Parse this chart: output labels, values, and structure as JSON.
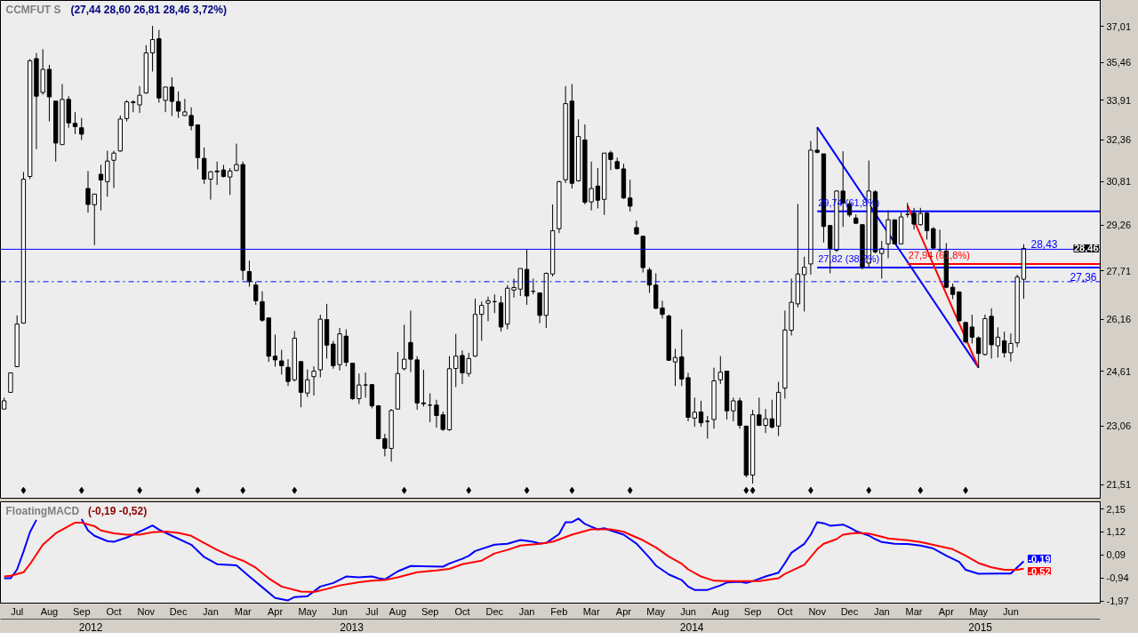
{
  "chart_data": [
    {
      "type": "candlestick",
      "title": "CCMFUT S",
      "subtitle": "(27,44  28,60  26,81  28,46  3,72%)",
      "x": [
        "2012-06-18",
        "2012-06-25",
        "2012-07-02",
        "2012-07-09",
        "2012-07-16",
        "2012-07-23",
        "2012-07-30",
        "2012-08-06",
        "2012-08-13",
        "2012-08-20",
        "2012-08-27",
        "2012-09-03",
        "2012-09-10",
        "2012-09-17",
        "2012-09-24",
        "2012-10-01",
        "2012-10-08",
        "2012-10-15",
        "2012-10-22",
        "2012-10-29",
        "2012-11-05",
        "2012-11-12",
        "2012-11-19",
        "2012-11-26",
        "2012-12-03",
        "2012-12-10",
        "2012-12-17",
        "2012-12-24",
        "2012-12-31",
        "2013-01-07",
        "2013-01-14",
        "2013-01-21",
        "2013-01-28",
        "2013-02-04",
        "2013-02-11",
        "2013-02-18",
        "2013-02-25",
        "2013-03-04",
        "2013-03-11",
        "2013-03-18",
        "2013-03-25",
        "2013-04-01",
        "2013-04-08",
        "2013-04-15",
        "2013-04-22",
        "2013-04-29",
        "2013-05-06",
        "2013-05-13",
        "2013-05-20",
        "2013-05-27",
        "2013-06-03",
        "2013-06-10",
        "2013-06-17",
        "2013-06-24",
        "2013-07-01",
        "2013-07-08",
        "2013-07-15",
        "2013-07-22",
        "2013-07-29",
        "2013-08-05",
        "2013-08-12",
        "2013-08-19",
        "2013-08-26",
        "2013-09-02",
        "2013-09-09",
        "2013-09-16",
        "2013-09-23",
        "2013-09-30",
        "2013-10-07",
        "2013-10-14",
        "2013-10-21",
        "2013-10-28",
        "2013-11-04",
        "2013-11-11",
        "2013-11-18",
        "2013-11-25",
        "2013-12-02",
        "2013-12-09",
        "2013-12-16",
        "2013-12-23",
        "2013-12-30",
        "2014-01-06",
        "2014-01-13",
        "2014-01-20",
        "2014-01-27",
        "2014-02-03",
        "2014-02-10",
        "2014-02-17",
        "2014-02-24",
        "2014-03-03",
        "2014-03-10",
        "2014-03-17",
        "2014-03-24",
        "2014-03-31",
        "2014-04-07",
        "2014-04-14",
        "2014-04-21",
        "2014-04-28",
        "2014-05-05",
        "2014-05-12",
        "2014-05-19",
        "2014-05-26",
        "2014-06-02",
        "2014-06-09",
        "2014-06-16",
        "2014-06-23",
        "2014-06-30",
        "2014-07-07",
        "2014-07-14",
        "2014-07-21",
        "2014-07-28",
        "2014-08-04",
        "2014-08-11",
        "2014-08-18",
        "2014-08-25",
        "2014-09-01",
        "2014-09-08",
        "2014-09-15",
        "2014-09-22",
        "2014-09-29",
        "2014-10-06",
        "2014-10-13",
        "2014-10-20",
        "2014-10-27",
        "2014-11-03",
        "2014-11-10",
        "2014-11-17",
        "2014-11-24",
        "2014-12-01",
        "2014-12-08",
        "2014-12-15",
        "2014-12-22",
        "2014-12-29",
        "2015-01-05",
        "2015-01-12",
        "2015-01-19",
        "2015-01-26",
        "2015-02-02",
        "2015-02-09",
        "2015-02-16",
        "2015-02-23",
        "2015-03-02",
        "2015-03-09",
        "2015-03-16",
        "2015-03-23",
        "2015-03-30",
        "2015-04-06",
        "2015-04-13",
        "2015-04-20",
        "2015-04-27",
        "2015-05-04",
        "2015-05-11",
        "2015-05-18",
        "2015-05-25",
        "2015-06-01",
        "2015-06-08",
        "2015-06-15",
        "2015-06-22",
        "2015-06-29"
      ],
      "ohlc": [
        [
          23.53,
          23.85,
          23.53,
          23.76
        ],
        [
          24.0,
          24.56,
          24.0,
          24.56
        ],
        [
          24.74,
          26.29,
          24.74,
          26.02
        ],
        [
          26.05,
          31.15,
          26.05,
          30.89
        ],
        [
          30.99,
          35.61,
          30.89,
          35.54
        ],
        [
          35.63,
          35.87,
          32.01,
          34.08
        ],
        [
          34.23,
          36.03,
          34.14,
          35.18
        ],
        [
          35.18,
          35.37,
          33.08,
          34.05
        ],
        [
          33.88,
          33.88,
          31.54,
          32.24
        ],
        [
          32.18,
          34.57,
          32.18,
          33.95
        ],
        [
          33.95,
          34.08,
          32.83,
          33.02
        ],
        [
          33.0,
          33.44,
          32.58,
          32.87
        ],
        [
          32.83,
          33.21,
          32.36,
          32.58
        ],
        [
          30.55,
          31.19,
          29.69,
          29.98
        ],
        [
          29.97,
          30.35,
          28.57,
          30.35
        ],
        [
          31.07,
          31.42,
          29.77,
          30.86
        ],
        [
          30.8,
          31.95,
          30.26,
          31.56
        ],
        [
          31.59,
          31.95,
          30.57,
          31.86
        ],
        [
          31.94,
          33.31,
          31.91,
          33.17
        ],
        [
          33.19,
          33.92,
          33.08,
          33.85
        ],
        [
          33.82,
          33.92,
          33.44,
          33.85
        ],
        [
          33.73,
          34.49,
          33.41,
          34.12
        ],
        [
          34.21,
          36.2,
          34.18,
          35.87
        ],
        [
          35.87,
          37.04,
          35.09,
          36.44
        ],
        [
          36.48,
          36.86,
          33.82,
          34.01
        ],
        [
          33.91,
          34.45,
          33.44,
          34.45
        ],
        [
          34.45,
          34.85,
          33.29,
          33.87
        ],
        [
          33.86,
          34.27,
          33.21,
          33.48
        ],
        [
          33.31,
          33.97,
          33.29,
          33.45
        ],
        [
          33.31,
          33.63,
          32.73,
          32.91
        ],
        [
          32.94,
          32.96,
          31.25,
          31.69
        ],
        [
          31.66,
          32.07,
          30.72,
          30.89
        ],
        [
          30.89,
          31.19,
          30.15,
          31.16
        ],
        [
          31.16,
          31.54,
          30.68,
          31.19
        ],
        [
          31.23,
          31.42,
          30.95,
          30.99
        ],
        [
          30.97,
          31.3,
          30.32,
          31.19
        ],
        [
          31.21,
          32.22,
          31.19,
          31.43
        ],
        [
          31.43,
          31.54,
          27.41,
          27.73
        ],
        [
          27.69,
          28.05,
          27.2,
          27.36
        ],
        [
          27.25,
          27.36,
          26.62,
          26.75
        ],
        [
          26.72,
          27.05,
          26.09,
          26.14
        ],
        [
          26.21,
          26.21,
          24.88,
          25.05
        ],
        [
          25.05,
          25.7,
          24.74,
          24.94
        ],
        [
          24.91,
          25.24,
          24.51,
          24.77
        ],
        [
          24.72,
          24.96,
          24.18,
          24.31
        ],
        [
          24.36,
          25.81,
          24.31,
          25.59
        ],
        [
          24.89,
          24.89,
          23.58,
          24.0
        ],
        [
          23.98,
          24.66,
          23.87,
          24.36
        ],
        [
          24.45,
          24.75,
          23.91,
          24.61
        ],
        [
          24.65,
          26.31,
          24.43,
          26.17
        ],
        [
          26.16,
          26.65,
          24.98,
          25.38
        ],
        [
          25.41,
          25.51,
          24.68,
          24.77
        ],
        [
          24.8,
          25.9,
          24.63,
          25.72
        ],
        [
          25.65,
          25.86,
          24.75,
          24.87
        ],
        [
          24.84,
          24.84,
          23.79,
          23.82
        ],
        [
          23.82,
          24.54,
          23.67,
          24.21
        ],
        [
          24.21,
          24.57,
          23.85,
          24.21
        ],
        [
          24.22,
          24.24,
          23.55,
          23.62
        ],
        [
          23.62,
          23.64,
          22.7,
          22.72
        ],
        [
          22.72,
          22.85,
          22.25,
          22.46
        ],
        [
          22.46,
          23.53,
          22.11,
          23.49
        ],
        [
          23.53,
          25.17,
          23.51,
          24.54
        ],
        [
          24.68,
          26.0,
          24.63,
          24.96
        ],
        [
          25.46,
          26.44,
          24.58,
          24.96
        ],
        [
          24.94,
          25.05,
          23.51,
          23.7
        ],
        [
          23.7,
          24.65,
          23.6,
          23.68
        ],
        [
          23.64,
          23.97,
          23.17,
          23.64
        ],
        [
          23.64,
          23.79,
          23.02,
          23.35
        ],
        [
          23.37,
          23.46,
          22.93,
          22.97
        ],
        [
          22.96,
          25.05,
          22.93,
          24.68
        ],
        [
          24.69,
          25.72,
          24.15,
          25.05
        ],
        [
          25.07,
          25.22,
          24.24,
          24.56
        ],
        [
          24.54,
          25.15,
          24.45,
          24.98
        ],
        [
          25.05,
          26.82,
          25.03,
          26.32
        ],
        [
          26.32,
          26.72,
          25.51,
          26.6
        ],
        [
          26.67,
          26.88,
          26.11,
          26.75
        ],
        [
          26.72,
          26.95,
          26.36,
          26.72
        ],
        [
          26.68,
          26.9,
          25.79,
          25.93
        ],
        [
          26.02,
          27.25,
          25.86,
          27.15
        ],
        [
          27.09,
          27.46,
          26.85,
          27.17
        ],
        [
          27.12,
          27.79,
          26.9,
          27.79
        ],
        [
          27.76,
          28.42,
          26.62,
          26.9
        ],
        [
          27.05,
          27.46,
          26.95,
          27.05
        ],
        [
          27.0,
          27.0,
          26.05,
          26.29
        ],
        [
          26.29,
          27.66,
          25.9,
          27.63
        ],
        [
          27.61,
          29.98,
          27.53,
          29.06
        ],
        [
          29.13,
          30.83,
          28.98,
          30.8
        ],
        [
          30.87,
          34.49,
          30.75,
          33.78
        ],
        [
          33.88,
          34.57,
          30.55,
          30.74
        ],
        [
          30.83,
          33.16,
          30.8,
          32.49
        ],
        [
          32.36,
          32.96,
          29.98,
          30.06
        ],
        [
          30.07,
          31.54,
          29.77,
          30.55
        ],
        [
          30.64,
          31.3,
          29.84,
          30.13
        ],
        [
          30.16,
          31.86,
          29.61,
          31.86
        ],
        [
          31.87,
          31.95,
          31.22,
          31.62
        ],
        [
          31.54,
          31.69,
          31.25,
          31.28
        ],
        [
          31.27,
          31.46,
          30.18,
          30.21
        ],
        [
          30.21,
          30.87,
          29.73,
          29.92
        ],
        [
          29.17,
          29.41,
          28.92,
          28.95
        ],
        [
          28.87,
          28.89,
          27.66,
          27.82
        ],
        [
          27.74,
          27.82,
          27.0,
          27.25
        ],
        [
          27.25,
          27.63,
          26.49,
          26.51
        ],
        [
          26.52,
          26.75,
          26.19,
          26.32
        ],
        [
          26.27,
          26.32,
          24.91,
          24.93
        ],
        [
          24.88,
          25.27,
          24.18,
          25.01
        ],
        [
          25.03,
          25.86,
          24.18,
          24.38
        ],
        [
          24.42,
          24.56,
          23.19,
          23.3
        ],
        [
          23.28,
          23.85,
          23.04,
          23.44
        ],
        [
          23.45,
          23.76,
          23.04,
          23.15
        ],
        [
          23.19,
          23.34,
          22.72,
          23.19
        ],
        [
          23.24,
          24.71,
          22.99,
          24.33
        ],
        [
          24.36,
          25.05,
          24.24,
          24.58
        ],
        [
          24.61,
          24.61,
          23.24,
          23.48
        ],
        [
          23.48,
          23.85,
          23.19,
          23.76
        ],
        [
          23.76,
          23.85,
          22.99,
          23.08
        ],
        [
          23.06,
          23.06,
          21.7,
          21.76
        ],
        [
          21.76,
          23.51,
          21.54,
          23.37
        ],
        [
          23.37,
          23.85,
          23.06,
          23.08
        ],
        [
          23.08,
          23.53,
          22.87,
          23.26
        ],
        [
          23.26,
          23.79,
          22.99,
          23.03
        ],
        [
          23.06,
          24.3,
          22.79,
          24.0
        ],
        [
          24.12,
          26.44,
          23.82,
          25.84
        ],
        [
          25.83,
          27.46,
          25.67,
          26.7
        ],
        [
          26.65,
          30.0,
          26.54,
          27.61
        ],
        [
          27.59,
          28.18,
          26.41,
          27.83
        ],
        [
          27.94,
          32.32,
          27.59,
          31.97
        ],
        [
          31.97,
          32.85,
          31.85,
          31.89
        ],
        [
          31.83,
          31.83,
          28.66,
          29.21
        ],
        [
          29.24,
          29.24,
          27.63,
          28.45
        ],
        [
          28.4,
          30.49,
          28.34,
          30.46
        ],
        [
          30.46,
          31.93,
          29.19,
          30.03
        ],
        [
          30.0,
          30.09,
          29.54,
          29.61
        ],
        [
          29.5,
          29.63,
          29.29,
          29.32
        ],
        [
          29.27,
          29.27,
          27.76,
          27.84
        ],
        [
          27.97,
          31.58,
          27.82,
          30.46
        ],
        [
          30.43,
          30.49,
          28.29,
          28.34
        ],
        [
          28.29,
          28.71,
          27.46,
          28.45
        ],
        [
          28.61,
          29.77,
          28.13,
          29.44
        ],
        [
          29.44,
          29.44,
          28.61,
          28.61
        ],
        [
          28.61,
          29.69,
          28.61,
          29.54
        ],
        [
          29.63,
          30.04,
          29.52,
          29.63
        ],
        [
          29.67,
          29.86,
          29.1,
          29.29
        ],
        [
          29.27,
          29.86,
          29.24,
          29.66
        ],
        [
          29.67,
          29.72,
          28.76,
          29.06
        ],
        [
          29.13,
          29.19,
          28.45,
          28.47
        ],
        [
          28.42,
          29.1,
          28.34,
          28.42
        ],
        [
          28.37,
          28.64,
          27.15,
          27.18
        ],
        [
          27.18,
          27.3,
          26.8,
          26.95
        ],
        [
          27.03,
          27.05,
          26.09,
          26.12
        ],
        [
          26.07,
          26.09,
          25.43,
          25.48
        ],
        [
          25.93,
          26.31,
          25.43,
          25.62
        ],
        [
          25.6,
          25.64,
          24.71,
          25.13
        ],
        [
          25.1,
          26.31,
          25.07,
          26.19
        ],
        [
          26.26,
          26.51,
          24.98,
          25.39
        ],
        [
          25.36,
          25.92,
          25.01,
          25.62
        ],
        [
          25.51,
          25.79,
          25.01,
          25.15
        ],
        [
          25.15,
          25.73,
          24.89,
          25.43
        ],
        [
          25.45,
          27.59,
          25.32,
          27.51
        ],
        [
          27.44,
          28.6,
          26.81,
          28.46
        ]
      ],
      "log": true,
      "xlim": [
        "2012-06-14",
        "2015-09-20"
      ],
      "ylim": [
        21.15,
        38.17
      ],
      "yticks": [
        {
          "value": 37.01,
          "label": "37,01"
        },
        {
          "value": 35.46,
          "label": "35,46"
        },
        {
          "value": 33.91,
          "label": "33,91"
        },
        {
          "value": 32.36,
          "label": "32,36"
        },
        {
          "value": 30.81,
          "label": "30,81"
        },
        {
          "value": 29.26,
          "label": "29,26"
        },
        {
          "value": 27.71,
          "label": "27,71"
        },
        {
          "value": 26.16,
          "label": "26,16"
        },
        {
          "value": 24.61,
          "label": "24,61"
        },
        {
          "value": 23.06,
          "label": "23,06"
        },
        {
          "value": 21.51,
          "label": "21,51"
        }
      ],
      "tick_labels": "y",
      "ref_lines": [
        {
          "axis": "y",
          "value": 28.43,
          "label": "28,43",
          "color": "#0000ff",
          "line_style": "solid"
        },
        {
          "axis": "y",
          "value": 27.36,
          "label": "27,36",
          "color": "#0000ff",
          "line_style": "dashdot"
        }
      ],
      "annotations": [
        {
          "text": "28,46",
          "y": 28.46
        }
      ],
      "series": [
        {
          "type": "line",
          "color": "#0000ff",
          "x": [
            "2014-11-17",
            "2015-05-11"
          ],
          "values": [
            32.85,
            24.71
          ]
        },
        {
          "type": "line",
          "color": "#0000ff",
          "x": [
            "2014-11-17",
            "2015-09-20"
          ],
          "values": [
            29.74,
            29.74
          ],
          "value_labels": [
            "29,74 (61,8%)",
            null
          ]
        },
        {
          "type": "line",
          "color": "#0000ff",
          "x": [
            "2014-11-17",
            "2015-09-20"
          ],
          "values": [
            27.82,
            27.82
          ],
          "value_labels": [
            "27,82 (38,2%)",
            null
          ]
        },
        {
          "type": "line",
          "color": "#ff0000",
          "x": [
            "2015-02-23",
            "2015-05-11"
          ],
          "values": [
            29.94,
            24.71
          ]
        },
        {
          "type": "line",
          "color": "#ff0000",
          "x": [
            "2015-02-23",
            "2015-09-20"
          ],
          "values": [
            27.94,
            27.94
          ],
          "value_labels": [
            "27,94 (61,8%)",
            null
          ]
        },
        {
          "type": "scatter",
          "marker": "diamond",
          "color": "#000000",
          "x": [
            "2012-07-09",
            "2012-09-10",
            "2012-11-12",
            "2013-01-14",
            "2013-03-04",
            "2013-04-29",
            "2013-08-26",
            "2013-11-04",
            "2014-01-06",
            "2014-02-24",
            "2014-04-28",
            "2014-09-01",
            "2014-09-08",
            "2014-11-10",
            "2015-01-12",
            "2015-03-09",
            "2015-04-27"
          ],
          "values": [
            21.37,
            21.37,
            21.37,
            21.37,
            21.37,
            21.37,
            21.37,
            21.37,
            21.37,
            21.37,
            21.37,
            21.37,
            21.37,
            21.37,
            21.37,
            21.37,
            21.37
          ]
        }
      ]
    },
    {
      "type": "line",
      "title": "FloatingMACD",
      "subtitle": "(-0,19 -0,52)",
      "xlim": [
        "2012-06-14",
        "2015-09-20"
      ],
      "xticks": [
        {
          "value": "2012-07-02",
          "label": "Jul"
        },
        {
          "value": "2012-08-06",
          "label": "Aug"
        },
        {
          "value": "2012-09-10",
          "label": "Sep"
        },
        {
          "value": "2012-10-15",
          "label": "Oct"
        },
        {
          "value": "2012-11-19",
          "label": "Nov"
        },
        {
          "value": "2012-12-24",
          "label": "Dec"
        },
        {
          "value": "2013-01-28",
          "label": "Jan"
        },
        {
          "value": "2013-03-04",
          "label": "Mar"
        },
        {
          "value": "2013-04-08",
          "label": "Apr"
        },
        {
          "value": "2013-05-13",
          "label": "May"
        },
        {
          "value": "2013-06-17",
          "label": "Jun"
        },
        {
          "value": "2013-07-22",
          "label": "Jul"
        },
        {
          "value": "2013-08-19",
          "label": "Aug"
        },
        {
          "value": "2013-09-23",
          "label": "Sep"
        },
        {
          "value": "2013-10-28",
          "label": "Oct"
        },
        {
          "value": "2013-12-02",
          "label": "Dec"
        },
        {
          "value": "2014-01-06",
          "label": "Jan"
        },
        {
          "value": "2014-02-10",
          "label": "Feb"
        },
        {
          "value": "2014-03-17",
          "label": "Mar"
        },
        {
          "value": "2014-04-21",
          "label": "Apr"
        },
        {
          "value": "2014-05-26",
          "label": "May"
        },
        {
          "value": "2014-06-30",
          "label": "Jun"
        },
        {
          "value": "2014-08-04",
          "label": "Aug"
        },
        {
          "value": "2014-09-08",
          "label": "Sep"
        },
        {
          "value": "2014-10-13",
          "label": "Oct"
        },
        {
          "value": "2014-11-17",
          "label": "Nov"
        },
        {
          "value": "2014-12-22",
          "label": "Dec"
        },
        {
          "value": "2015-01-26",
          "label": "Jan"
        },
        {
          "value": "2015-03-02",
          "label": "Mar"
        },
        {
          "value": "2015-04-06",
          "label": "Apr"
        },
        {
          "value": "2015-05-11",
          "label": "May"
        },
        {
          "value": "2015-06-15",
          "label": "Jun"
        }
      ],
      "x2lim": [
        "2012-06-14",
        "2015-09-20"
      ],
      "x2ticks": [
        {
          "value": "2012-09-20",
          "label": "2012"
        },
        {
          "value": "2013-06-30",
          "label": "2013"
        },
        {
          "value": "2014-07-04",
          "label": "2014"
        },
        {
          "value": "2015-05-13",
          "label": "2015"
        }
      ],
      "ylim": [
        -2.06,
        2.47
      ],
      "yticks": [
        {
          "value": 2.15,
          "label": "2,15"
        },
        {
          "value": 1.12,
          "label": "1,12"
        },
        {
          "value": 0.09,
          "label": "0,09"
        },
        {
          "value": -0.94,
          "label": "-0,94"
        },
        {
          "value": -1.97,
          "label": "-1,97"
        }
      ],
      "series": [
        {
          "color": "#0000ff",
          "x": [
            "2012-06-18",
            "2012-06-25",
            "2012-07-02",
            "2012-07-09",
            "2012-07-16",
            "2012-07-23",
            "2012-08-13",
            "2012-09-10",
            "2012-09-17",
            "2012-09-24",
            "2012-10-08",
            "2012-10-15",
            "2012-10-29",
            "2012-11-05",
            "2012-11-19",
            "2012-11-26",
            "2012-12-03",
            "2012-12-17",
            "2013-01-07",
            "2013-01-21",
            "2013-02-04",
            "2013-02-25",
            "2013-03-11",
            "2013-03-25",
            "2013-04-08",
            "2013-04-22",
            "2013-04-29",
            "2013-05-13",
            "2013-05-20",
            "2013-05-27",
            "2013-06-10",
            "2013-06-24",
            "2013-07-08",
            "2013-07-22",
            "2013-07-29",
            "2013-08-05",
            "2013-08-19",
            "2013-09-02",
            "2013-10-07",
            "2013-10-14",
            "2013-10-28",
            "2013-11-04",
            "2013-11-11",
            "2013-12-02",
            "2013-12-16",
            "2013-12-30",
            "2014-01-13",
            "2014-01-20",
            "2014-01-27",
            "2014-02-10",
            "2014-02-17",
            "2014-02-24",
            "2014-03-03",
            "2014-03-10",
            "2014-03-17",
            "2014-03-24",
            "2014-03-31",
            "2014-04-07",
            "2014-04-21",
            "2014-05-05",
            "2014-05-19",
            "2014-05-26",
            "2014-06-09",
            "2014-06-23",
            "2014-06-30",
            "2014-07-07",
            "2014-07-21",
            "2014-08-04",
            "2014-08-11",
            "2014-08-25",
            "2014-09-01",
            "2014-09-08",
            "2014-09-22",
            "2014-10-06",
            "2014-10-13",
            "2014-10-20",
            "2014-11-03",
            "2014-11-10",
            "2014-11-17",
            "2014-11-24",
            "2014-12-01",
            "2014-12-15",
            "2014-12-22",
            "2014-12-29",
            "2015-01-12",
            "2015-01-19",
            "2015-01-26",
            "2015-02-09",
            "2015-02-23",
            "2015-03-09",
            "2015-03-23",
            "2015-04-06",
            "2015-04-20",
            "2015-04-27",
            "2015-05-11",
            "2015-06-01",
            "2015-06-15",
            "2015-06-22",
            "2015-06-29"
          ],
          "values": [
            -0.95,
            -0.95,
            -0.56,
            0.24,
            1.11,
            1.66,
            null,
            1.7,
            1.19,
            0.95,
            0.71,
            0.68,
            0.87,
            1.0,
            1.27,
            1.41,
            1.22,
            0.95,
            0.55,
            0.0,
            -0.32,
            -0.37,
            -0.87,
            -1.35,
            -1.83,
            -1.94,
            -1.79,
            -1.75,
            -1.54,
            -1.32,
            -1.16,
            -0.87,
            -0.91,
            -0.87,
            -0.95,
            -1.0,
            -0.64,
            -0.4,
            -0.43,
            -0.29,
            -0.08,
            0.05,
            0.27,
            0.55,
            0.59,
            0.76,
            0.68,
            0.6,
            0.63,
            1.03,
            1.56,
            1.56,
            1.72,
            1.48,
            1.35,
            1.24,
            1.29,
            1.19,
            1.0,
            0.6,
            -0.03,
            -0.38,
            -0.78,
            -1.03,
            -1.32,
            -1.47,
            -1.47,
            -1.27,
            -1.14,
            -1.11,
            -1.16,
            -1.08,
            -0.87,
            -0.7,
            -0.27,
            0.19,
            0.59,
            1.0,
            1.56,
            1.51,
            1.4,
            1.45,
            1.32,
            1.16,
            0.96,
            0.8,
            0.67,
            0.59,
            0.58,
            0.51,
            0.38,
            0.06,
            -0.22,
            -0.57,
            -0.75,
            -0.74,
            -0.74,
            -0.46,
            -0.19
          ],
          "value_labels": [
            null,
            null,
            null,
            null,
            null,
            null,
            null,
            null,
            null,
            null,
            null,
            null,
            null,
            null,
            null,
            null,
            null,
            null,
            null,
            null,
            null,
            null,
            null,
            null,
            null,
            null,
            null,
            null,
            null,
            null,
            null,
            null,
            null,
            null,
            null,
            null,
            null,
            null,
            null,
            null,
            null,
            null,
            null,
            null,
            null,
            null,
            null,
            null,
            null,
            null,
            null,
            null,
            null,
            null,
            null,
            null,
            null,
            null,
            null,
            null,
            null,
            null,
            null,
            null,
            null,
            null,
            null,
            null,
            null,
            null,
            null,
            null,
            null,
            null,
            null,
            null,
            null,
            null,
            null,
            null,
            null,
            null,
            null,
            null,
            null,
            null,
            null,
            null,
            null,
            null,
            null,
            null,
            null,
            null,
            null,
            null,
            null,
            null,
            "-0,19"
          ]
        },
        {
          "color": "#ff0000",
          "x": [
            "2012-06-18",
            "2012-06-25",
            "2012-07-09",
            "2012-07-16",
            "2012-07-30",
            "2012-08-13",
            "2012-08-27",
            "2012-09-03",
            "2012-09-10",
            "2012-09-24",
            "2012-10-01",
            "2012-10-15",
            "2012-10-29",
            "2012-11-12",
            "2012-11-26",
            "2012-12-10",
            "2012-12-24",
            "2013-01-07",
            "2013-01-21",
            "2013-02-04",
            "2013-02-18",
            "2013-03-04",
            "2013-03-18",
            "2013-04-01",
            "2013-04-15",
            "2013-05-06",
            "2013-05-20",
            "2013-06-03",
            "2013-06-17",
            "2013-07-08",
            "2013-07-22",
            "2013-08-05",
            "2013-08-19",
            "2013-09-09",
            "2013-09-30",
            "2013-10-14",
            "2013-10-28",
            "2013-11-18",
            "2013-12-02",
            "2013-12-16",
            "2013-12-30",
            "2014-01-20",
            "2014-02-03",
            "2014-02-24",
            "2014-03-10",
            "2014-03-17",
            "2014-04-07",
            "2014-04-21",
            "2014-04-28",
            "2014-05-12",
            "2014-05-26",
            "2014-06-09",
            "2014-06-23",
            "2014-06-30",
            "2014-07-14",
            "2014-07-28",
            "2014-08-11",
            "2014-09-01",
            "2014-09-15",
            "2014-10-06",
            "2014-10-13",
            "2014-11-03",
            "2014-11-17",
            "2014-11-24",
            "2014-12-08",
            "2014-12-15",
            "2014-12-29",
            "2015-01-12",
            "2015-01-26",
            "2015-02-02",
            "2015-02-23",
            "2015-03-09",
            "2015-03-23",
            "2015-04-13",
            "2015-04-27",
            "2015-05-11",
            "2015-05-25",
            "2015-06-08",
            "2015-06-22",
            "2015-06-29"
          ],
          "values": [
            -0.87,
            -0.84,
            -0.68,
            -0.32,
            0.55,
            1.06,
            1.38,
            1.54,
            1.54,
            1.38,
            1.19,
            1.06,
            1.0,
            1.0,
            1.11,
            1.14,
            1.08,
            0.95,
            0.63,
            0.32,
            0.05,
            -0.16,
            -0.48,
            -0.95,
            -1.32,
            -1.54,
            -1.56,
            -1.43,
            -1.27,
            -1.13,
            -1.06,
            -1.03,
            -0.91,
            -0.68,
            -0.6,
            -0.53,
            -0.32,
            -0.16,
            0.16,
            0.32,
            0.51,
            0.59,
            0.68,
            1.0,
            1.16,
            1.24,
            1.24,
            1.13,
            1.0,
            0.75,
            0.43,
            0.02,
            -0.3,
            -0.55,
            -0.87,
            -1.06,
            -1.08,
            -1.08,
            -1.08,
            -0.95,
            -0.75,
            -0.35,
            0.35,
            0.59,
            0.8,
            1.0,
            1.08,
            1.05,
            0.91,
            0.83,
            0.75,
            0.67,
            0.54,
            0.35,
            0.06,
            -0.27,
            -0.46,
            -0.57,
            -0.57,
            -0.52
          ],
          "value_labels": [
            null,
            null,
            null,
            null,
            null,
            null,
            null,
            null,
            null,
            null,
            null,
            null,
            null,
            null,
            null,
            null,
            null,
            null,
            null,
            null,
            null,
            null,
            null,
            null,
            null,
            null,
            null,
            null,
            null,
            null,
            null,
            null,
            null,
            null,
            null,
            null,
            null,
            null,
            null,
            null,
            null,
            null,
            null,
            null,
            null,
            null,
            null,
            null,
            null,
            null,
            null,
            null,
            null,
            null,
            null,
            null,
            null,
            null,
            null,
            null,
            null,
            null,
            null,
            null,
            null,
            null,
            null,
            null,
            null,
            null,
            null,
            null,
            null,
            null,
            null,
            null,
            null,
            null,
            null,
            "-0,52"
          ]
        }
      ]
    }
  ]
}
